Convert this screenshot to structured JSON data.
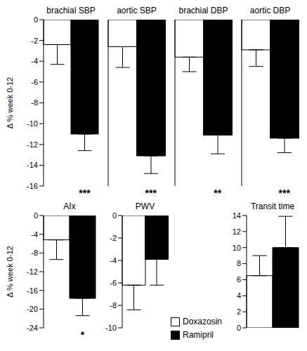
{
  "chart_data": [
    {
      "type": "bar",
      "title": "brachial SBP",
      "ylabel": "Δ % week 0-12",
      "ylim": [
        -16,
        0
      ],
      "yticks": [
        0,
        -2,
        -4,
        -6,
        -8,
        -10,
        -12,
        -14,
        -16
      ],
      "series": [
        {
          "name": "Doxazosin",
          "color": "#ffffff",
          "values": [
            -2.4
          ],
          "errors": [
            1.9
          ]
        },
        {
          "name": "Ramipril",
          "color": "#000000",
          "values": [
            -11
          ],
          "errors": [
            1.6
          ]
        }
      ],
      "annotation": "***"
    },
    {
      "type": "bar",
      "title": "aortic SBP",
      "ylim": [
        -16,
        0
      ],
      "tick_labels": false,
      "series": [
        {
          "name": "Doxazosin",
          "color": "#ffffff",
          "values": [
            -2.6
          ],
          "errors": [
            2.0
          ]
        },
        {
          "name": "Ramipril",
          "color": "#000000",
          "values": [
            -13.1
          ],
          "errors": [
            1.7
          ]
        }
      ],
      "annotation": "***"
    },
    {
      "type": "bar",
      "title": "brachial DBP",
      "ylim": [
        -16,
        0
      ],
      "tick_labels": false,
      "series": [
        {
          "name": "Doxazosin",
          "color": "#ffffff",
          "values": [
            -3.6
          ],
          "errors": [
            1.4
          ]
        },
        {
          "name": "Ramipril",
          "color": "#000000",
          "values": [
            -11.1
          ],
          "errors": [
            1.8
          ]
        }
      ],
      "annotation": "**"
    },
    {
      "type": "bar",
      "title": "aortic DBP",
      "ylim": [
        -16,
        0
      ],
      "tick_labels": false,
      "series": [
        {
          "name": "Doxazosin",
          "color": "#ffffff",
          "values": [
            -2.9
          ],
          "errors": [
            1.6
          ]
        },
        {
          "name": "Ramipril",
          "color": "#000000",
          "values": [
            -11.4
          ],
          "errors": [
            1.4
          ]
        }
      ],
      "annotation": "***"
    },
    {
      "type": "bar",
      "title": "AIx",
      "ylabel": "Δ % week 0-12",
      "ylim": [
        -24,
        0
      ],
      "yticks": [
        0,
        -4,
        -8,
        -12,
        -16,
        -20,
        -24
      ],
      "series": [
        {
          "name": "Doxazosin",
          "color": "#ffffff",
          "values": [
            -5.2
          ],
          "errors": [
            4.2
          ]
        },
        {
          "name": "Ramipril",
          "color": "#000000",
          "values": [
            -17.7
          ],
          "errors": [
            3.7
          ]
        }
      ],
      "annotation": "*"
    },
    {
      "type": "bar",
      "title": "PWV",
      "ylim": [
        -10,
        0
      ],
      "yticks": [
        0,
        -2,
        -4,
        -6,
        -8,
        -10
      ],
      "legend": "lower right",
      "series": [
        {
          "name": "Doxazosin",
          "color": "#ffffff",
          "values": [
            -6.2
          ],
          "errors": [
            2.2
          ]
        },
        {
          "name": "Ramipril",
          "color": "#000000",
          "values": [
            -3.9
          ],
          "errors": [
            2.3
          ]
        }
      ]
    },
    {
      "type": "bar",
      "title": "Transit time",
      "ylim": [
        0,
        14
      ],
      "yticks": [
        0,
        2,
        4,
        6,
        8,
        10,
        12,
        14
      ],
      "series": [
        {
          "name": "Doxazosin",
          "color": "#ffffff",
          "values": [
            6.5
          ],
          "errors": [
            2.5
          ]
        },
        {
          "name": "Ramipril",
          "color": "#000000",
          "values": [
            10
          ],
          "errors": [
            3.9
          ]
        }
      ]
    }
  ]
}
